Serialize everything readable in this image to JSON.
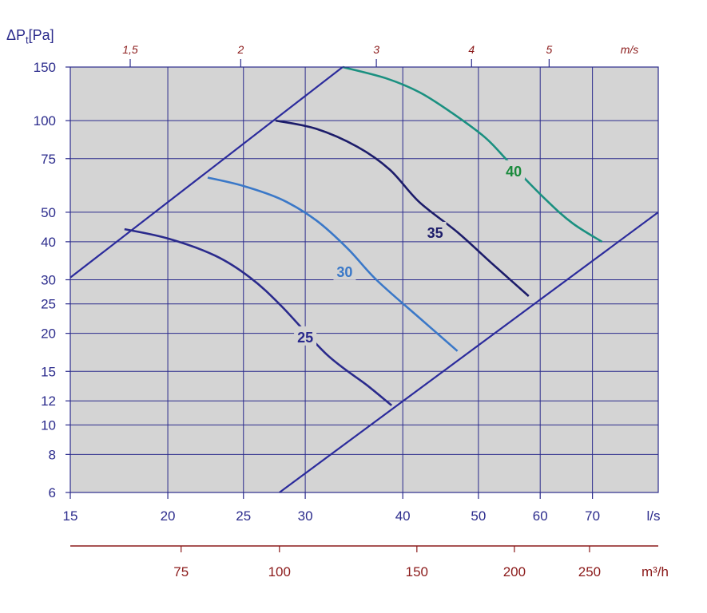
{
  "chart_data": {
    "type": "line",
    "y_axis_title": "ΔPt[Pa]",
    "y_scale": "log",
    "x_scale": "log",
    "ylim": [
      6,
      150
    ],
    "xlim": [
      15,
      85
    ],
    "grid": true,
    "y_ticks": [
      {
        "value": 6,
        "label": "6"
      },
      {
        "value": 8,
        "label": "8"
      },
      {
        "value": 10,
        "label": "10"
      },
      {
        "value": 12,
        "label": "12"
      },
      {
        "value": 15,
        "label": "15"
      },
      {
        "value": 20,
        "label": "20"
      },
      {
        "value": 25,
        "label": "25"
      },
      {
        "value": 30,
        "label": "30"
      },
      {
        "value": 40,
        "label": "40"
      },
      {
        "value": 50,
        "label": "50"
      },
      {
        "value": 75,
        "label": "75"
      },
      {
        "value": 100,
        "label": "100"
      },
      {
        "value": 150,
        "label": "150"
      }
    ],
    "x_ticks": [
      {
        "value": 15,
        "label": "15"
      },
      {
        "value": 20,
        "label": "20"
      },
      {
        "value": 25,
        "label": "25"
      },
      {
        "value": 30,
        "label": "30"
      },
      {
        "value": 40,
        "label": "40"
      },
      {
        "value": 50,
        "label": "50"
      },
      {
        "value": 60,
        "label": "60"
      },
      {
        "value": 70,
        "label": "70"
      }
    ],
    "x_unit": "l/s",
    "top_axis": {
      "unit": "m/s",
      "ticks": [
        {
          "value": 1.5,
          "label": "1,5",
          "x_equiv": 17.9
        },
        {
          "value": 2,
          "label": "2",
          "x_equiv": 24.8
        },
        {
          "value": 3,
          "label": "3",
          "x_equiv": 37
        },
        {
          "value": 4,
          "label": "4",
          "x_equiv": 49
        },
        {
          "value": 5,
          "label": "5",
          "x_equiv": 61.6
        }
      ]
    },
    "bottom_axis": {
      "unit": "m³/h",
      "ticks": [
        {
          "value": 75,
          "label": "75",
          "x_equiv": 20.8
        },
        {
          "value": 100,
          "label": "100",
          "x_equiv": 27.8
        },
        {
          "value": 150,
          "label": "150",
          "x_equiv": 41.7
        },
        {
          "value": 200,
          "label": "200",
          "x_equiv": 55.6
        },
        {
          "value": 250,
          "label": "250",
          "x_equiv": 69.4
        }
      ]
    },
    "boundary_lines": [
      {
        "points": [
          [
            15,
            30.5
          ],
          [
            33.5,
            150
          ]
        ]
      },
      {
        "points": [
          [
            27.8,
            6
          ],
          [
            85,
            50
          ]
        ]
      }
    ],
    "series": [
      {
        "name": "25",
        "color": "#2a2a8c",
        "label_at": [
          30,
          19.5
        ],
        "points": [
          [
            17.6,
            44
          ],
          [
            20,
            41
          ],
          [
            23,
            36
          ],
          [
            25.5,
            30.5
          ],
          [
            28,
            24.5
          ],
          [
            32,
            17
          ],
          [
            36,
            13.5
          ],
          [
            38.7,
            11.6
          ]
        ]
      },
      {
        "name": "30",
        "color": "#3a78c8",
        "label_at": [
          33.7,
          32
        ],
        "points": [
          [
            22.5,
            65
          ],
          [
            25,
            61
          ],
          [
            28,
            55
          ],
          [
            31,
            47
          ],
          [
            34,
            38
          ],
          [
            37,
            30
          ],
          [
            42,
            22.5
          ],
          [
            47,
            17.5
          ]
        ]
      },
      {
        "name": "35",
        "color": "#1c1c6a",
        "label_at": [
          44,
          43
        ],
        "points": [
          [
            27.5,
            100
          ],
          [
            31,
            94
          ],
          [
            35,
            82
          ],
          [
            38.5,
            69
          ],
          [
            42,
            54
          ],
          [
            47,
            43
          ],
          [
            52,
            34
          ],
          [
            58,
            26.5
          ]
        ]
      },
      {
        "name": "40",
        "color": "#1a9080",
        "text_color": "#1a8a3c",
        "label_at": [
          55.5,
          68.5
        ],
        "points": [
          [
            33.5,
            150
          ],
          [
            38,
            138
          ],
          [
            42,
            124
          ],
          [
            46,
            107
          ],
          [
            51,
            88
          ],
          [
            55,
            72
          ],
          [
            61,
            55
          ],
          [
            66,
            46
          ],
          [
            72,
            40
          ]
        ]
      }
    ],
    "colors": {
      "plot_bg": "#d4d4d4",
      "axis": "#2b2b8c",
      "secondary_axis": "#8b1a1a",
      "grid": "#2b2b8c"
    }
  }
}
